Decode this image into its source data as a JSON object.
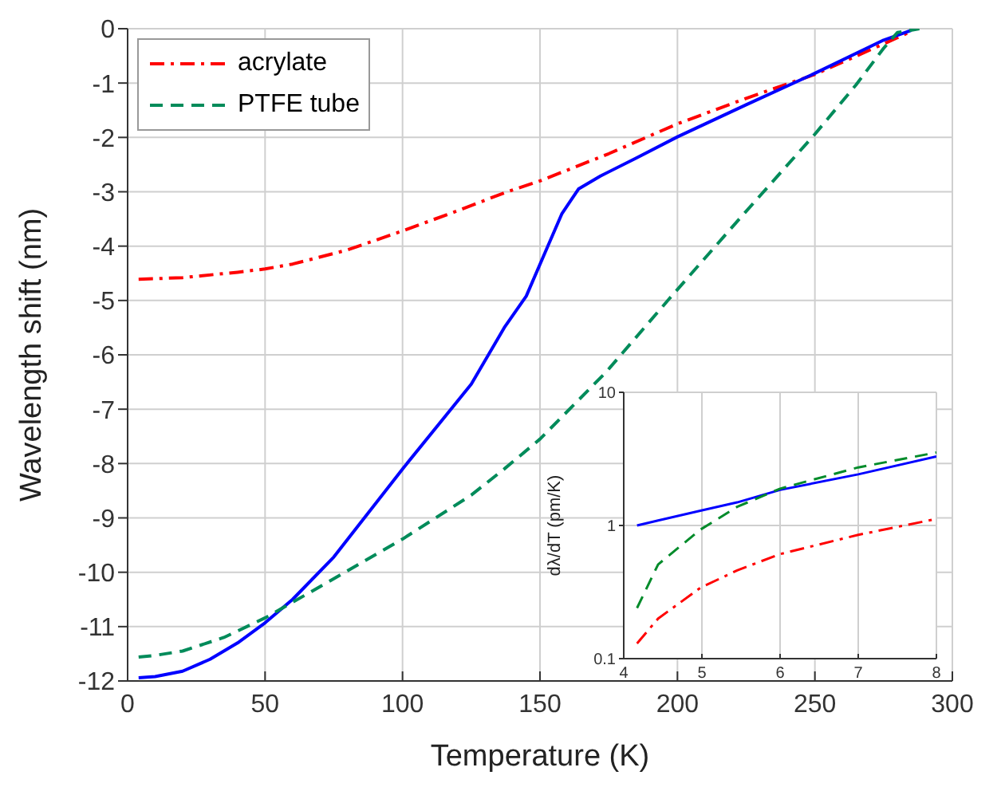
{
  "chart_data": [
    {
      "type": "line",
      "xlabel": "Temperature (K)",
      "ylabel": "Wavelength shift (nm)",
      "xlim": [
        0,
        300
      ],
      "xticks": [
        0,
        50,
        100,
        150,
        200,
        250,
        300
      ],
      "ylim": [
        -12,
        0
      ],
      "yticks": [
        -12,
        -11,
        -10,
        -9,
        -8,
        -7,
        -6,
        -5,
        -4,
        -3,
        -2,
        -1,
        0
      ],
      "grid": true,
      "legend": "top left",
      "marker": "none",
      "series": [
        {
          "name": "acrylate",
          "color": "#ff0000",
          "line_style": "dashdot",
          "x": [
            4,
            20,
            40,
            50,
            60,
            80,
            100,
            120,
            137,
            150,
            175,
            200,
            225,
            250,
            275,
            285
          ],
          "values": [
            -4.61,
            -4.58,
            -4.48,
            -4.42,
            -4.33,
            -4.07,
            -3.72,
            -3.35,
            -3.02,
            -2.8,
            -2.3,
            -1.75,
            -1.28,
            -0.84,
            -0.28,
            -0.05
          ]
        },
        {
          "color": "#0000ff",
          "line_style": "solid",
          "x": [
            4,
            10,
            20,
            30,
            40,
            50,
            60,
            75,
            100,
            125,
            137,
            145,
            152,
            158,
            164,
            172,
            185,
            200,
            225,
            250,
            275,
            285
          ],
          "values": [
            -11.94,
            -11.92,
            -11.82,
            -11.6,
            -11.3,
            -10.93,
            -10.5,
            -9.72,
            -8.1,
            -6.54,
            -5.5,
            -4.92,
            -4.1,
            -3.4,
            -2.95,
            -2.71,
            -2.38,
            -1.99,
            -1.4,
            -0.82,
            -0.21,
            -0.03
          ]
        },
        {
          "name": "PTFE tube",
          "color": "#008b5a",
          "line_style": "dashed",
          "x": [
            4,
            10,
            20,
            35,
            50,
            75,
            100,
            125,
            137,
            150,
            174,
            197,
            222,
            250,
            265,
            275,
            280,
            288
          ],
          "values": [
            -11.56,
            -11.53,
            -11.45,
            -11.2,
            -10.84,
            -10.12,
            -9.39,
            -8.58,
            -8.1,
            -7.55,
            -6.32,
            -4.97,
            -3.53,
            -1.94,
            -1.03,
            -0.36,
            -0.07,
            0
          ]
        }
      ]
    },
    {
      "type": "line",
      "ylabel": "dλ/dT (pm/K)",
      "xlim": [
        4,
        8
      ],
      "xticks": [
        4,
        5,
        6,
        7,
        8
      ],
      "ylim": [
        0.1,
        10
      ],
      "yticks": [
        0.1,
        1,
        10
      ],
      "log": "y",
      "grid": true,
      "marker": "none",
      "series": [
        {
          "color": "#ff0000",
          "line_style": "dashdot",
          "x": [
            4.17,
            4.44,
            4.98,
            5.45,
            6,
            7,
            8
          ],
          "values": [
            0.13,
            0.2,
            0.34,
            0.46,
            0.61,
            0.85,
            1.12
          ]
        },
        {
          "color": "#0000ff",
          "line_style": "solid",
          "x": [
            4.17,
            4.44,
            4.98,
            5.45,
            6,
            7,
            8
          ],
          "values": [
            1.0,
            1.09,
            1.29,
            1.49,
            1.85,
            2.42,
            3.3
          ]
        },
        {
          "color": "#008b2a",
          "line_style": "dashed",
          "x": [
            4.17,
            4.44,
            4.98,
            5.45,
            6,
            7,
            8
          ],
          "values": [
            0.24,
            0.51,
            0.93,
            1.38,
            1.89,
            2.73,
            3.53
          ]
        }
      ]
    }
  ]
}
